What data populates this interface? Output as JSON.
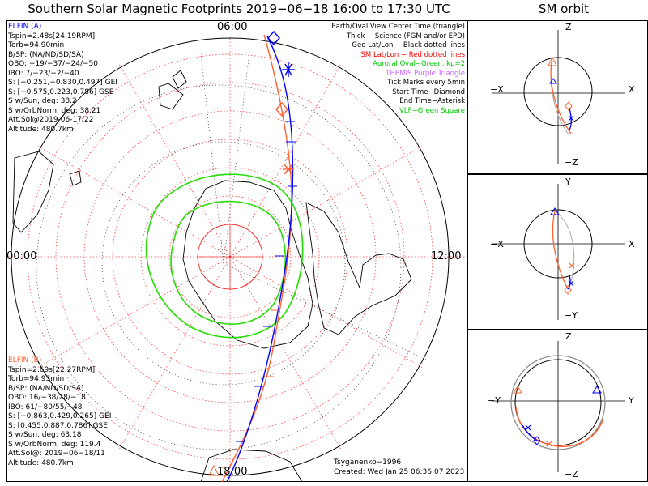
{
  "title": "Southern Solar Magnetic Footprints 2019−06−18 16:00 to 17:30 UTC",
  "sm_title": "SM orbit",
  "mlt_labels": {
    "top": "06:00",
    "left": "00:00",
    "right": "12:00",
    "bottom": "18:00"
  },
  "elfin_a": {
    "name": "ELFIN (A)",
    "color": "#0000ff",
    "lines": [
      "Tspin=2.48s[24.19RPM]",
      "Torb=94.90min",
      "B/SP: (NA/ND/SD/SA)",
      "OBO: −19/−37/−24/−50",
      "IBO: 7/−23/−2/−40",
      "S: [−0.251,−0.830,0.497] GEI",
      "S: [−0.575,0.223,0.786] GSE",
      "S w/Sun, deg: 38.2",
      "S w/OrbNorm, deg: 38.21",
      "Att.Sol@2019-06-17/22",
      "Altitude: 480.7km"
    ]
  },
  "elfin_b": {
    "name": "ELFIN (B)",
    "color": "#ff6030",
    "lines": [
      "Tspin=2.69s[22.27RPM]",
      "Torb=94.93min",
      "B/SP: (NA/ND/SD/SA)",
      "OBO: 16/−38/28/−18",
      "IBO: 61/−80/55/−48",
      "S: [−0.863,0.429,0.265] GEI",
      "S: [0.455,0.887,0.786] GSE",
      "S w/Sun, deg: 63.18",
      "S w/OrbNorm, deg: 119.4",
      "Att.Sol@: 2019−06−18/11",
      "Altitude: 480.7km"
    ]
  },
  "legend": [
    {
      "text": "Earth/Oval View Center Time (triangle)",
      "color": "#000000"
    },
    {
      "text": "Thick − Science (FGM and/or EPD)",
      "color": "#000000"
    },
    {
      "text": "Geo Lat/Lon − Black dotted lines",
      "color": "#000000"
    },
    {
      "text": "SM Lat/Lon − Red dotted lines",
      "color": "#ff0000"
    },
    {
      "text": "Auroral Oval−Green, kp=2",
      "color": "#00cc00"
    },
    {
      "text": "THEMIS Purple Triangle",
      "color": "#cc66ff"
    },
    {
      "text": "Tick Marks every 5min",
      "color": "#000000"
    },
    {
      "text": "Start Time−Diamond",
      "color": "#000000"
    },
    {
      "text": "End Time−Asterisk",
      "color": "#000000"
    },
    {
      "text": "VLF−Green Square",
      "color": "#00cc00"
    }
  ],
  "credit": "Tsyganenko−1996",
  "created": "Created: Wed Jan 25 06:36:07 2023",
  "panels": {
    "xz": {
      "top": "Z",
      "bottom": "−Z",
      "left": "−X",
      "right": "X"
    },
    "xy": {
      "top": "Y",
      "bottom": "−Y",
      "left": "−X",
      "right": "X"
    },
    "yz": {
      "top": "Z",
      "bottom": "−Z",
      "left": "−Y",
      "right": "Y"
    }
  }
}
